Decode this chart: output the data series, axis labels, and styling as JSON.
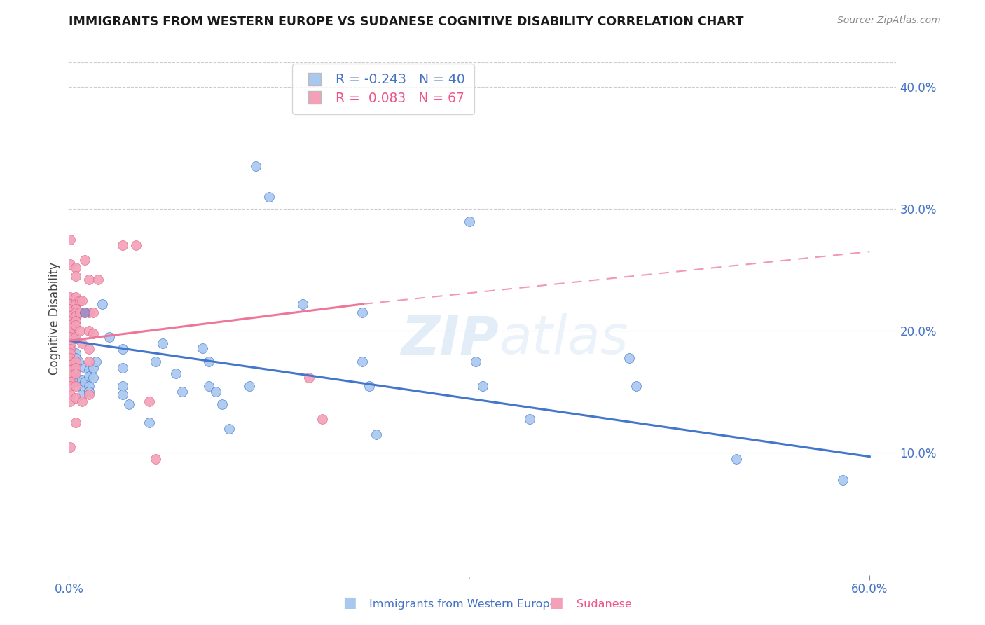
{
  "title": "IMMIGRANTS FROM WESTERN EUROPE VS SUDANESE COGNITIVE DISABILITY CORRELATION CHART",
  "source": "Source: ZipAtlas.com",
  "ylabel": "Cognitive Disability",
  "right_yticks": [
    "40.0%",
    "30.0%",
    "20.0%",
    "10.0%"
  ],
  "right_ytick_vals": [
    0.4,
    0.3,
    0.2,
    0.1
  ],
  "xlim": [
    0.0,
    0.62
  ],
  "ylim": [
    -0.01,
    0.44
  ],
  "plot_ylim": [
    0.0,
    0.42
  ],
  "color_blue": "#A8C8F0",
  "color_pink": "#F4A0B8",
  "color_purple": "#9B8EC4",
  "trendline_blue_color": "#4477CC",
  "trendline_pink_color": "#EE7799",
  "blue_trendline": [
    [
      0.0,
      0.192
    ],
    [
      0.6,
      0.097
    ]
  ],
  "pink_trendline_solid": [
    [
      0.0,
      0.192
    ],
    [
      0.22,
      0.222
    ]
  ],
  "pink_trendline_dashed": [
    [
      0.22,
      0.222
    ],
    [
      0.6,
      0.265
    ]
  ],
  "blue_points": [
    [
      0.005,
      0.194
    ],
    [
      0.005,
      0.182
    ],
    [
      0.005,
      0.178
    ],
    [
      0.005,
      0.172
    ],
    [
      0.005,
      0.168
    ],
    [
      0.005,
      0.165
    ],
    [
      0.005,
      0.162
    ],
    [
      0.005,
      0.16
    ],
    [
      0.005,
      0.158
    ],
    [
      0.007,
      0.175
    ],
    [
      0.01,
      0.16
    ],
    [
      0.01,
      0.155
    ],
    [
      0.01,
      0.148
    ],
    [
      0.012,
      0.17
    ],
    [
      0.012,
      0.158
    ],
    [
      0.015,
      0.168
    ],
    [
      0.015,
      0.163
    ],
    [
      0.015,
      0.155
    ],
    [
      0.015,
      0.15
    ],
    [
      0.018,
      0.17
    ],
    [
      0.018,
      0.162
    ],
    [
      0.02,
      0.175
    ],
    [
      0.025,
      0.222
    ],
    [
      0.03,
      0.195
    ],
    [
      0.04,
      0.185
    ],
    [
      0.04,
      0.17
    ],
    [
      0.04,
      0.155
    ],
    [
      0.04,
      0.148
    ],
    [
      0.045,
      0.14
    ],
    [
      0.06,
      0.125
    ],
    [
      0.065,
      0.175
    ],
    [
      0.07,
      0.19
    ],
    [
      0.08,
      0.165
    ],
    [
      0.085,
      0.15
    ],
    [
      0.1,
      0.186
    ],
    [
      0.105,
      0.175
    ],
    [
      0.105,
      0.155
    ],
    [
      0.11,
      0.15
    ],
    [
      0.115,
      0.14
    ],
    [
      0.12,
      0.12
    ],
    [
      0.135,
      0.155
    ],
    [
      0.14,
      0.335
    ],
    [
      0.15,
      0.31
    ],
    [
      0.175,
      0.222
    ],
    [
      0.22,
      0.215
    ],
    [
      0.22,
      0.175
    ],
    [
      0.225,
      0.155
    ],
    [
      0.23,
      0.115
    ],
    [
      0.3,
      0.29
    ],
    [
      0.305,
      0.175
    ],
    [
      0.31,
      0.155
    ],
    [
      0.345,
      0.128
    ],
    [
      0.42,
      0.178
    ],
    [
      0.425,
      0.155
    ],
    [
      0.5,
      0.095
    ],
    [
      0.58,
      0.078
    ]
  ],
  "pink_points": [
    [
      0.001,
      0.275
    ],
    [
      0.001,
      0.255
    ],
    [
      0.001,
      0.228
    ],
    [
      0.001,
      0.225
    ],
    [
      0.001,
      0.222
    ],
    [
      0.001,
      0.218
    ],
    [
      0.001,
      0.215
    ],
    [
      0.001,
      0.212
    ],
    [
      0.001,
      0.208
    ],
    [
      0.001,
      0.205
    ],
    [
      0.001,
      0.202
    ],
    [
      0.001,
      0.198
    ],
    [
      0.001,
      0.195
    ],
    [
      0.001,
      0.192
    ],
    [
      0.001,
      0.188
    ],
    [
      0.001,
      0.185
    ],
    [
      0.001,
      0.182
    ],
    [
      0.001,
      0.178
    ],
    [
      0.001,
      0.175
    ],
    [
      0.001,
      0.172
    ],
    [
      0.001,
      0.168
    ],
    [
      0.001,
      0.165
    ],
    [
      0.001,
      0.162
    ],
    [
      0.001,
      0.158
    ],
    [
      0.001,
      0.155
    ],
    [
      0.001,
      0.148
    ],
    [
      0.001,
      0.142
    ],
    [
      0.001,
      0.105
    ],
    [
      0.005,
      0.252
    ],
    [
      0.005,
      0.245
    ],
    [
      0.005,
      0.228
    ],
    [
      0.005,
      0.222
    ],
    [
      0.005,
      0.218
    ],
    [
      0.005,
      0.215
    ],
    [
      0.005,
      0.212
    ],
    [
      0.005,
      0.208
    ],
    [
      0.005,
      0.205
    ],
    [
      0.005,
      0.195
    ],
    [
      0.005,
      0.175
    ],
    [
      0.005,
      0.17
    ],
    [
      0.005,
      0.165
    ],
    [
      0.005,
      0.155
    ],
    [
      0.005,
      0.145
    ],
    [
      0.005,
      0.125
    ],
    [
      0.008,
      0.225
    ],
    [
      0.008,
      0.215
    ],
    [
      0.008,
      0.2
    ],
    [
      0.01,
      0.225
    ],
    [
      0.01,
      0.19
    ],
    [
      0.01,
      0.142
    ],
    [
      0.012,
      0.258
    ],
    [
      0.015,
      0.242
    ],
    [
      0.015,
      0.215
    ],
    [
      0.015,
      0.2
    ],
    [
      0.015,
      0.185
    ],
    [
      0.015,
      0.175
    ],
    [
      0.015,
      0.148
    ],
    [
      0.018,
      0.215
    ],
    [
      0.018,
      0.198
    ],
    [
      0.022,
      0.242
    ],
    [
      0.04,
      0.27
    ],
    [
      0.05,
      0.27
    ],
    [
      0.06,
      0.142
    ],
    [
      0.065,
      0.095
    ],
    [
      0.18,
      0.162
    ],
    [
      0.19,
      0.128
    ]
  ],
  "purple_points": [
    [
      0.012,
      0.215
    ]
  ]
}
